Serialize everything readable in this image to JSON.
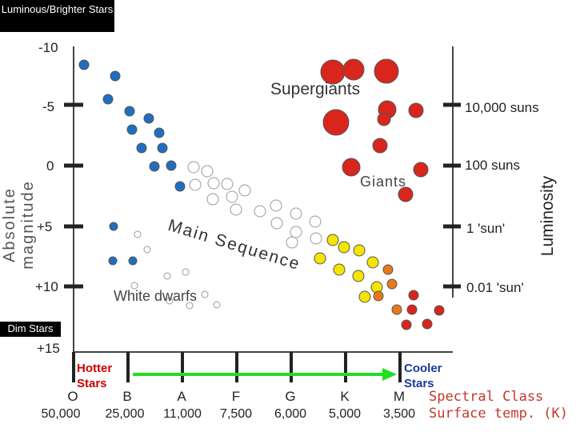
{
  "labels": {
    "luminous_brighter": "Luminous/Brighter Stars",
    "dim_stars": "Dim Stars",
    "absolute_magnitude": "Absolute magnitude",
    "luminosity": "Luminosity",
    "supergiants": "Supergiants",
    "giants": "Giants",
    "main_sequence": "Main Sequence",
    "white_dwarfs": "White dwarfs",
    "hotter_stars": "Hotter Stars",
    "cooler_stars": "Cooler Stars",
    "spectral_class": "Spectral Class",
    "surface_temp": "Surface temp. (K)"
  },
  "magnitude_ticks": [
    "-10",
    "-5",
    "0",
    "+5",
    "+10",
    "+15"
  ],
  "luminosity_ticks": [
    "10,000 suns",
    "100 suns",
    "1 'sun'",
    "0.01 'sun'"
  ],
  "spectral_classes": [
    "O",
    "B",
    "A",
    "F",
    "G",
    "K",
    "M"
  ],
  "temperatures": [
    "50,000",
    "25,000",
    "11,000",
    "7,500",
    "6,000",
    "5,000",
    "3,500"
  ],
  "colors": {
    "blue_star": "#1e6fbf",
    "white_star": "#ffffff",
    "yellow_star": "#f5e400",
    "orange_star": "#e8791a",
    "red_star": "#d8261c",
    "arrow_green": "#22dd22"
  }
}
